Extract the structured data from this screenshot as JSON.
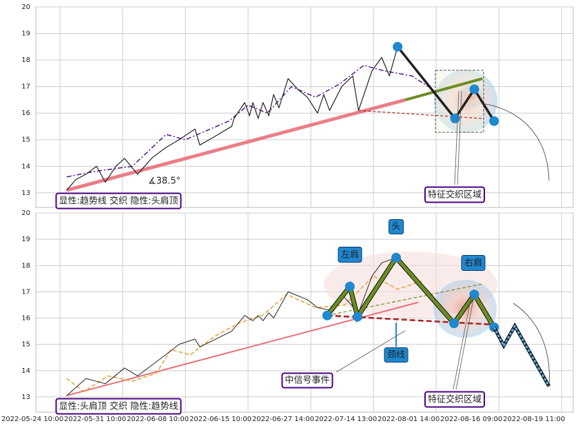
{
  "chart_data": [
    {
      "type": "line",
      "xlim": [
        0,
        111.4
      ],
      "ylim": [
        12.45,
        20
      ],
      "yticks": [
        13,
        14,
        15,
        16,
        17,
        18,
        19,
        20
      ],
      "xticks": [
        5,
        18,
        31,
        44,
        57,
        70,
        83,
        96,
        109
      ],
      "grid": true,
      "series": [
        {
          "color": "#e8707a",
          "x": [
            6.4,
            76.6
          ],
          "values": [
            13.1,
            16.5
          ]
        },
        {
          "color": "#6b8e23",
          "x": [
            76.6,
            92.6
          ],
          "values": [
            16.5,
            17.3
          ]
        },
        {
          "color": "#4b0082",
          "x": [
            6.4,
            12,
            20,
            27,
            31,
            40,
            44,
            48,
            53,
            58,
            63,
            68,
            72,
            78,
            83
          ],
          "values": [
            13.6,
            13.8,
            14.0,
            15.2,
            15.0,
            15.7,
            16.3,
            16.0,
            17.0,
            16.6,
            17.1,
            17.8,
            17.6,
            17.4,
            16.8
          ]
        },
        {
          "color": "#222222",
          "x": [
            6.4,
            8.3,
            10.4,
            12.6,
            14.4,
            16.6,
            18.4,
            21.1,
            24,
            26.9,
            29.7,
            33,
            34,
            36.9,
            40.6,
            41.1,
            43.3,
            44.3,
            45,
            46.1,
            47.1,
            48.3,
            49.3,
            50.4,
            52.3,
            54.3,
            56.3,
            58.4,
            59.7,
            60.9,
            63.4,
            65.7,
            66.9,
            69.7,
            71.7,
            73.3,
            75
          ],
          "values": [
            13.1,
            13.5,
            13.7,
            14.0,
            13.4,
            14.0,
            14.3,
            13.7,
            14.3,
            14.7,
            15.0,
            15.4,
            14.8,
            15.1,
            15.5,
            15.8,
            16.4,
            15.9,
            16.4,
            15.8,
            16.4,
            15.9,
            16.7,
            16.2,
            17.3,
            16.9,
            16.6,
            16.0,
            16.7,
            16.1,
            17.0,
            17.4,
            16.1,
            17.6,
            18.1,
            17.4,
            18.5
          ]
        },
        {
          "color": "#b22222",
          "x": [
            66.9,
            92.6
          ],
          "values": [
            16.1,
            15.8
          ]
        },
        {
          "color": "#222222",
          "x": [
            75,
            86.9,
            90.9,
            95
          ],
          "values": [
            18.5,
            15.8,
            16.9,
            15.7
          ],
          "markers": true,
          "marker_color": "#1e88d0"
        }
      ],
      "annotations": [
        "∡38.5°",
        "显性:趋势线 交织 隐性:头肩顶",
        "特征交织区域"
      ]
    },
    {
      "type": "line",
      "xlim": [
        0,
        111.4
      ],
      "ylim": [
        12.42,
        20
      ],
      "yticks": [
        13,
        14,
        15,
        16,
        17,
        18,
        19,
        20
      ],
      "xticks": [
        {
          "value": 5,
          "label": "2022-05-24 10:00"
        },
        {
          "value": 18,
          "label": "2022-05-31 10:00"
        },
        {
          "value": 31,
          "label": "2022-06-08 10:00"
        },
        {
          "value": 44,
          "label": "2022-06-15 10:00"
        },
        {
          "value": 57,
          "label": "2022-06-27 14:00"
        },
        {
          "value": 70,
          "label": "2022-07-14 13:00"
        },
        {
          "value": 83,
          "label": "2022-08-01 14:00"
        },
        {
          "value": 96,
          "label": "2022-08-16 09:00"
        },
        {
          "value": 109,
          "label": "2022-08-19 11:00"
        }
      ],
      "grid": true,
      "series": [
        {
          "color": "#e8707a",
          "x": [
            6.4,
            79.3
          ],
          "values": [
            13.05,
            16.6
          ]
        },
        {
          "color": "#e8a030",
          "x": [
            6.4,
            10,
            15,
            20,
            25,
            28,
            32,
            37,
            42,
            47,
            52,
            58,
            64,
            70,
            75,
            80
          ],
          "values": [
            13.7,
            13.2,
            13.8,
            13.6,
            13.9,
            14.8,
            14.6,
            15.3,
            15.8,
            16.1,
            16.9,
            16.4,
            16.5,
            17.6,
            17.1,
            17.4
          ]
        },
        {
          "color": "#222222",
          "x": [
            6.4,
            10.4,
            14.4,
            18.4,
            21.1,
            26.9,
            29.7,
            33,
            34,
            40.6,
            43.3,
            45,
            46.1,
            47.1,
            48.3,
            49.3,
            52.3,
            56.3,
            58.4,
            60.9,
            63.4,
            66.9,
            69.7,
            71.7,
            74.7
          ],
          "values": [
            13.05,
            13.7,
            13.5,
            14.1,
            13.8,
            14.6,
            15.0,
            15.2,
            14.9,
            15.5,
            16.1,
            15.9,
            16.1,
            15.9,
            16.2,
            16.0,
            17.0,
            16.7,
            16.4,
            16.3,
            16.9,
            16.2,
            17.6,
            18.1,
            18.3
          ]
        },
        {
          "color": "#6b8e23",
          "x": [
            60.4,
            92.6
          ],
          "values": [
            16.1,
            17.3
          ]
        },
        {
          "color": "#b22222",
          "x": [
            60.4,
            95
          ],
          "values": [
            16.1,
            15.75
          ]
        },
        {
          "color": "#6b8e23",
          "x": [
            60.4,
            65.1,
            66.7,
            74.7,
            86.7,
            90.9,
            95
          ],
          "values": [
            16.1,
            17.2,
            16.05,
            18.3,
            15.8,
            16.9,
            15.65
          ],
          "markers": true,
          "marker_color": "#1e88d0"
        },
        {
          "color": "#5aaee0",
          "x": [
            95,
            97,
            99.3,
            106.4
          ],
          "values": [
            15.65,
            14.95,
            15.7,
            13.4
          ]
        }
      ],
      "annotations": [
        "头",
        "左肩",
        "右肩",
        "颈线",
        "中信号事件",
        "特征交织区域",
        "显性:头肩顶 交织 隐性:趋势线"
      ]
    }
  ]
}
